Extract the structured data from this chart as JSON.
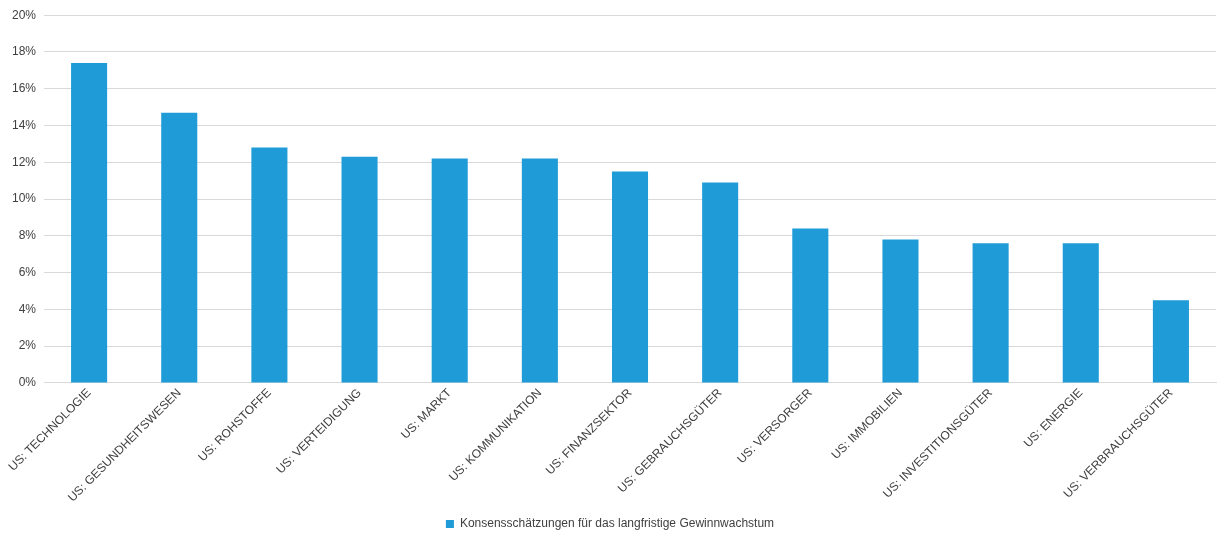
{
  "chart_data": {
    "type": "bar",
    "categories": [
      "US: TECHNOLOGIE",
      "US: GESUNDHEITSWESEN",
      "US: ROHSTOFFE",
      "US: VERTEIDIGUNG",
      "US: MARKT",
      "US: KOMMUNIKATION",
      "US: FINANZSEKTOR",
      "US: GEBRAUCHSGÜTER",
      "US: VERSORGER",
      "US: IMMOBILIEN",
      "US: INVESTITIONSGÜTER",
      "US: ENERGIE",
      "US: VERBRAUCHSGÜTER"
    ],
    "series": [
      {
        "name": "Konsensschätzungen für das langfristige Gewinnwachstum",
        "color": "#1f9bd7",
        "values": [
          17.4,
          14.7,
          12.8,
          12.3,
          12.2,
          12.2,
          11.5,
          10.9,
          8.4,
          7.8,
          7.6,
          7.6,
          4.5
        ]
      }
    ],
    "ylim": [
      0,
      20
    ],
    "yticks": [
      {
        "value": 0,
        "label": "0%"
      },
      {
        "value": 2,
        "label": "2%"
      },
      {
        "value": 4,
        "label": "4%"
      },
      {
        "value": 6,
        "label": "6%"
      },
      {
        "value": 8,
        "label": "8%"
      },
      {
        "value": 10,
        "label": "10%"
      },
      {
        "value": 12,
        "label": "12%"
      },
      {
        "value": 14,
        "label": "14%"
      },
      {
        "value": 16,
        "label": "16%"
      },
      {
        "value": 18,
        "label": "18%"
      },
      {
        "value": 20,
        "label": "20%"
      }
    ],
    "grid": "y",
    "legend": "bottom"
  }
}
